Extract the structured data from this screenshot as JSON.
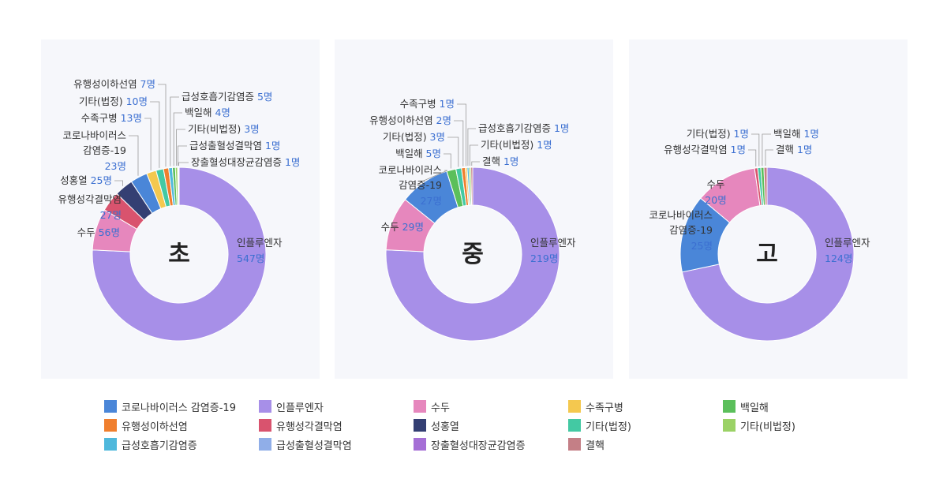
{
  "colors": {
    "코로나바이러스 감염증-19": "#4a86d8",
    "인플루엔자": "#a78fe8",
    "수두": "#e687bd",
    "수족구병": "#f4c84f",
    "백일해": "#5bbf5b",
    "유행성이하선염": "#f07f2e",
    "유행성각결막염": "#d9536e",
    "성홍열": "#343f73",
    "기타(법정)": "#43c9a3",
    "기타(비법정)": "#9bd266",
    "급성호흡기감염증": "#4fb8dc",
    "급성출혈성결막염": "#90aee8",
    "장출혈성대장균감염증": "#a56fd6",
    "결핵": "#c47f86"
  },
  "legend": [
    "코로나바이러스 감염증-19",
    "인플루엔자",
    "수두",
    "수족구병",
    "백일해",
    "유행성이하선염",
    "유행성각결막염",
    "성홍열",
    "기타(법정)",
    "기타(비법정)",
    "급성호흡기감염증",
    "급성출혈성결막염",
    "장출혈성대장균감염증",
    "결핵"
  ],
  "chart_data": [
    {
      "type": "pie",
      "title": "초",
      "unit": "명",
      "slices": [
        {
          "label": "인플루엔자",
          "value": 547
        },
        {
          "label": "수두",
          "value": 56
        },
        {
          "label": "유행성각결막염",
          "value": 27
        },
        {
          "label": "성홍열",
          "value": 25
        },
        {
          "label": "코로나바이러스 감염증-19",
          "value": 23
        },
        {
          "label": "수족구병",
          "value": 13
        },
        {
          "label": "기타(법정)",
          "value": 10
        },
        {
          "label": "유행성이하선염",
          "value": 7
        },
        {
          "label": "급성호흡기감염증",
          "value": 5
        },
        {
          "label": "백일해",
          "value": 4
        },
        {
          "label": "기타(비법정)",
          "value": 3
        },
        {
          "label": "급성출혈성결막염",
          "value": 1
        },
        {
          "label": "장출혈성대장균감염증",
          "value": 1
        }
      ]
    },
    {
      "type": "pie",
      "title": "중",
      "unit": "명",
      "slices": [
        {
          "label": "인플루엔자",
          "value": 219
        },
        {
          "label": "수두",
          "value": 29
        },
        {
          "label": "코로나바이러스 감염증-19",
          "value": 27
        },
        {
          "label": "백일해",
          "value": 5
        },
        {
          "label": "기타(법정)",
          "value": 3
        },
        {
          "label": "유행성이하선염",
          "value": 2
        },
        {
          "label": "수족구병",
          "value": 1
        },
        {
          "label": "급성호흡기감염증",
          "value": 1
        },
        {
          "label": "기타(비법정)",
          "value": 1
        },
        {
          "label": "결핵",
          "value": 1
        }
      ]
    },
    {
      "type": "pie",
      "title": "고",
      "unit": "명",
      "slices": [
        {
          "label": "인플루엔자",
          "value": 124
        },
        {
          "label": "코로나바이러스 감염증-19",
          "value": 25
        },
        {
          "label": "수두",
          "value": 20
        },
        {
          "label": "유행성각결막염",
          "value": 1
        },
        {
          "label": "기타(법정)",
          "value": 1
        },
        {
          "label": "백일해",
          "value": 1
        },
        {
          "label": "결핵",
          "value": 1
        }
      ]
    }
  ]
}
